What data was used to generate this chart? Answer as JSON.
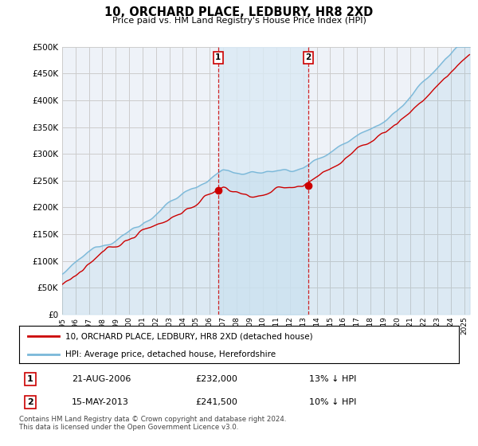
{
  "title": "10, ORCHARD PLACE, LEDBURY, HR8 2XD",
  "subtitle": "Price paid vs. HM Land Registry's House Price Index (HPI)",
  "ylabel_ticks": [
    "£0",
    "£50K",
    "£100K",
    "£150K",
    "£200K",
    "£250K",
    "£300K",
    "£350K",
    "£400K",
    "£450K",
    "£500K"
  ],
  "ytick_values": [
    0,
    50000,
    100000,
    150000,
    200000,
    250000,
    300000,
    350000,
    400000,
    450000,
    500000
  ],
  "xlim_start": 1995.0,
  "xlim_end": 2025.5,
  "ylim": [
    0,
    500000
  ],
  "hpi_color": "#7ab8d9",
  "price_color": "#cc0000",
  "hpi_fill_color": "#daeaf5",
  "transaction1_date": 2006.64,
  "transaction1_price": 232000,
  "transaction2_date": 2013.37,
  "transaction2_price": 241500,
  "legend_label1": "10, ORCHARD PLACE, LEDBURY, HR8 2XD (detached house)",
  "legend_label2": "HPI: Average price, detached house, Herefordshire",
  "table_row1": [
    "1",
    "21-AUG-2006",
    "£232,000",
    "13% ↓ HPI"
  ],
  "table_row2": [
    "2",
    "15-MAY-2013",
    "£241,500",
    "10% ↓ HPI"
  ],
  "footnote": "Contains HM Land Registry data © Crown copyright and database right 2024.\nThis data is licensed under the Open Government Licence v3.0.",
  "bg_color": "#ffffff",
  "grid_color": "#cccccc",
  "plot_bg_color": "#eef2f8"
}
